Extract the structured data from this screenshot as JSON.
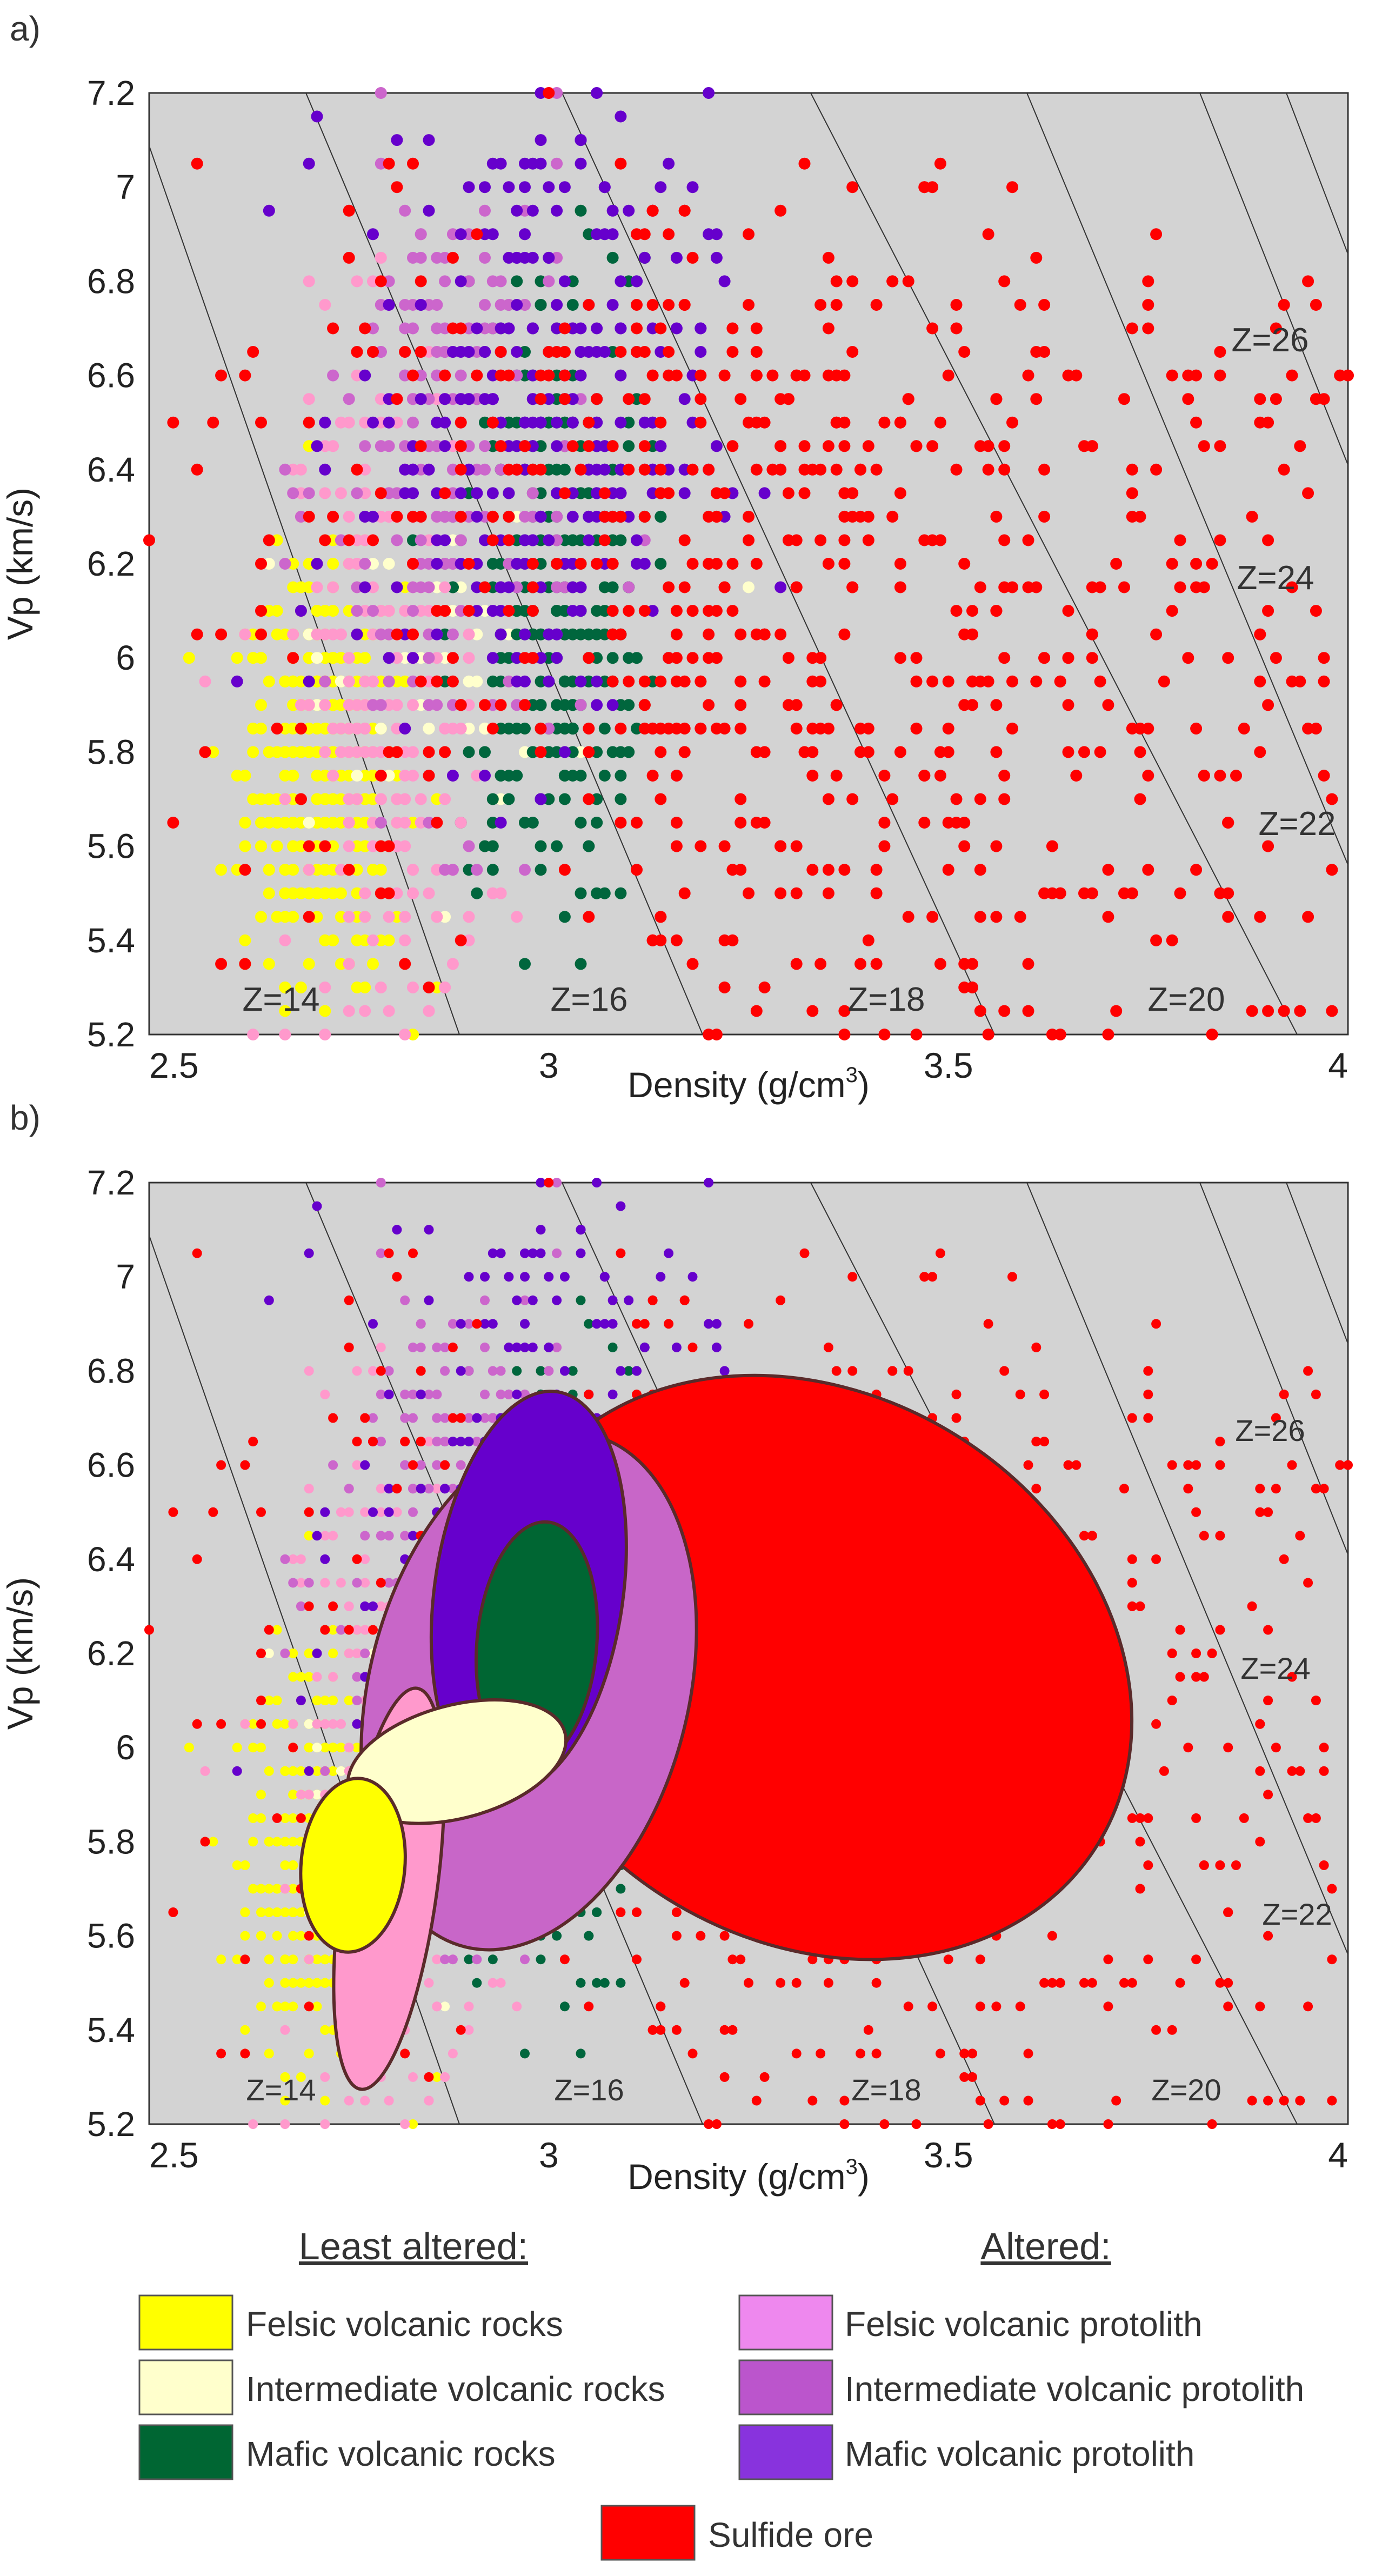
{
  "chart_data": [
    {
      "panel_label": "a)",
      "type": "scatter",
      "xlabel": "Density (g/cm",
      "xlabel_sup": "3",
      "xlabel_close": ")",
      "ylabel": "Vp (km/s)",
      "xlim": [
        2.5,
        4.0
      ],
      "ylim": [
        5.2,
        7.2
      ],
      "x_ticks": [
        "2.5",
        "3",
        "3.5",
        "4"
      ],
      "y_ticks": [
        "5.2",
        "5.4",
        "5.6",
        "5.8",
        "6",
        "6.2",
        "6.4",
        "6.6",
        "6.8",
        "7",
        "7.2"
      ],
      "iso_z_lines": [
        {
          "label": "Z=14"
        },
        {
          "label": "Z=16"
        },
        {
          "label": "Z=18"
        },
        {
          "label": "Z=20"
        },
        {
          "label": "Z=22"
        },
        {
          "label": "Z=24"
        },
        {
          "label": "Z=26"
        }
      ],
      "ellipses": []
    },
    {
      "panel_label": "b)",
      "type": "scatter",
      "xlabel": "Density (g/cm",
      "xlabel_sup": "3",
      "xlabel_close": ")",
      "ylabel": "Vp (km/s)",
      "xlim": [
        2.5,
        4.0
      ],
      "ylim": [
        5.2,
        7.2
      ],
      "x_ticks": [
        "2.5",
        "3",
        "3.5",
        "4"
      ],
      "y_ticks": [
        "5.2",
        "5.4",
        "5.6",
        "5.8",
        "6",
        "6.2",
        "6.4",
        "6.6",
        "6.8",
        "7",
        "7.2"
      ],
      "iso_z_lines": [
        {
          "label": "Z=14"
        },
        {
          "label": "Z=16"
        },
        {
          "label": "Z=18"
        },
        {
          "label": "Z=20"
        },
        {
          "label": "Z=22"
        },
        {
          "label": "Z=24"
        },
        {
          "label": "Z=26"
        }
      ],
      "ellipses": [
        {
          "series": "Sulfide ore",
          "cx": 3.33,
          "cy": 6.17,
          "rx": 0.42,
          "ry": 0.58,
          "rot": 32
        },
        {
          "series": "Intermediate volcanic protolith",
          "cx": 2.975,
          "cy": 6.12,
          "rx": 0.2,
          "ry": 0.56,
          "rot": 14
        },
        {
          "series": "Mafic volcanic protolith",
          "cx": 2.975,
          "cy": 6.33,
          "rx": 0.118,
          "ry": 0.43,
          "rot": 8
        },
        {
          "series": "Mafic volcanic rocks",
          "cx": 2.985,
          "cy": 6.22,
          "rx": 0.075,
          "ry": 0.26,
          "rot": 5
        },
        {
          "series": "Felsic volcanic protolith",
          "cx": 2.8,
          "cy": 5.7,
          "rx": 0.06,
          "ry": 0.43,
          "rot": 8
        },
        {
          "series": "Intermediate volcanic rocks",
          "cx": 2.885,
          "cy": 5.97,
          "rx": 0.14,
          "ry": 0.12,
          "rot": -15
        },
        {
          "series": "Felsic volcanic rocks",
          "cx": 2.755,
          "cy": 5.75,
          "rx": 0.065,
          "ry": 0.185,
          "rot": 5
        }
      ]
    }
  ],
  "series": [
    {
      "name": "Felsic volcanic rocks",
      "color": "#ffff00",
      "group": "least",
      "center": [
        2.72,
        5.75
      ],
      "spread": [
        0.05,
        0.22
      ],
      "count": 430
    },
    {
      "name": "Intermediate volcanic rocks",
      "color": "#ffffcc",
      "group": "least",
      "center": [
        2.93,
        6.05
      ],
      "spread": [
        0.1,
        0.15
      ],
      "count": 110
    },
    {
      "name": "Mafic volcanic rocks",
      "color": "#00663d",
      "group": "least",
      "center": [
        3.0,
        6.15
      ],
      "spread": [
        0.06,
        0.35
      ],
      "count": 340
    },
    {
      "name": "Felsic volcanic protolith",
      "color": "#ff99cc",
      "group": "altered",
      "center": [
        2.8,
        5.9
      ],
      "spread": [
        0.06,
        0.4
      ],
      "count": 260
    },
    {
      "name": "Intermediate volcanic protolith",
      "color": "#cc66cc",
      "group": "altered",
      "center": [
        2.88,
        6.4
      ],
      "spread": [
        0.08,
        0.35
      ],
      "count": 230
    },
    {
      "name": "Mafic volcanic protolith",
      "color": "#6600cc",
      "group": "altered",
      "center": [
        2.98,
        6.5
      ],
      "spread": [
        0.11,
        0.35
      ],
      "count": 310
    },
    {
      "name": "Sulfide ore",
      "color": "#ff0000",
      "group": "sulfide",
      "center": [
        3.15,
        6.2
      ],
      "spread": [
        0.32,
        0.45
      ],
      "count": 720
    }
  ],
  "legend": {
    "least_header": "Least altered:",
    "altered_header": "Altered:",
    "items_left": [
      {
        "label": "Felsic volcanic rocks",
        "color": "#ffff00"
      },
      {
        "label": "Intermediate volcanic rocks",
        "color": "#ffffcc"
      },
      {
        "label": "Mafic volcanic rocks",
        "color": "#006633"
      }
    ],
    "items_right": [
      {
        "label": "Felsic volcanic protolith",
        "color": "#ee88ee"
      },
      {
        "label": "Intermediate volcanic protolith",
        "color": "#bb55cc"
      },
      {
        "label": "Mafic volcanic protolith",
        "color": "#8833dd"
      }
    ],
    "sulfide": {
      "label": "Sulfide ore",
      "color": "#ff0000"
    }
  },
  "colors": {
    "plot_bg": "#d3d3d3",
    "ellipse_stroke": "#5a2a2a",
    "ellipse_colors": {
      "Sulfide ore": "#ff0000",
      "Intermediate volcanic protolith": "#c866c8",
      "Mafic volcanic protolith": "#6600cc",
      "Mafic volcanic rocks": "#006633",
      "Felsic volcanic protolith": "#ff99cc",
      "Intermediate volcanic rocks": "#ffffcc",
      "Felsic volcanic rocks": "#ffff00"
    }
  }
}
